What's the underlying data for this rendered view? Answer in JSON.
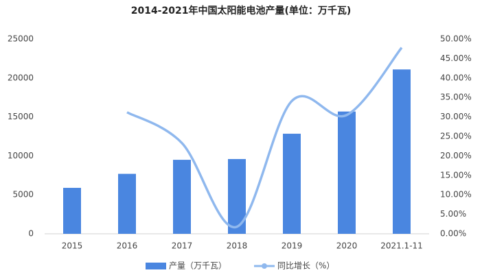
{
  "chart_data": {
    "type": "bar",
    "title": "2014-2021年中国太阳能电池产量(单位：万千瓦)",
    "categories": [
      "2015",
      "2016",
      "2017",
      "2018",
      "2019",
      "2020",
      "2021.1-11"
    ],
    "series": [
      {
        "name": "产量（万千瓦）",
        "type": "bar",
        "color": "#4a86e0",
        "values": [
          5900,
          7700,
          9500,
          9600,
          12850,
          15700,
          21100
        ]
      },
      {
        "name": "同比增长（%）",
        "type": "line",
        "axis": "y2",
        "color": "#8fb8ee",
        "values": [
          null,
          31.2,
          23.3,
          1.8,
          34.1,
          30.5,
          47.8
        ]
      }
    ],
    "ylim": [
      0,
      25000
    ],
    "yticks": [
      0,
      5000,
      10000,
      15000,
      20000,
      25000
    ],
    "y2lim": [
      0,
      50
    ],
    "y2ticks": [
      {
        "value": 0,
        "label": "0.00%"
      },
      {
        "value": 5,
        "label": "5.00%"
      },
      {
        "value": 10,
        "label": "10.00%"
      },
      {
        "value": 15,
        "label": "15.00%"
      },
      {
        "value": 20,
        "label": "20.00%"
      },
      {
        "value": 25,
        "label": "25.00%"
      },
      {
        "value": 30,
        "label": "30.00%"
      },
      {
        "value": 35,
        "label": "35.00%"
      },
      {
        "value": 40,
        "label": "40.00%"
      },
      {
        "value": 45,
        "label": "45.00%"
      },
      {
        "value": 50,
        "label": "50.00%"
      }
    ],
    "legend": "bottom"
  }
}
